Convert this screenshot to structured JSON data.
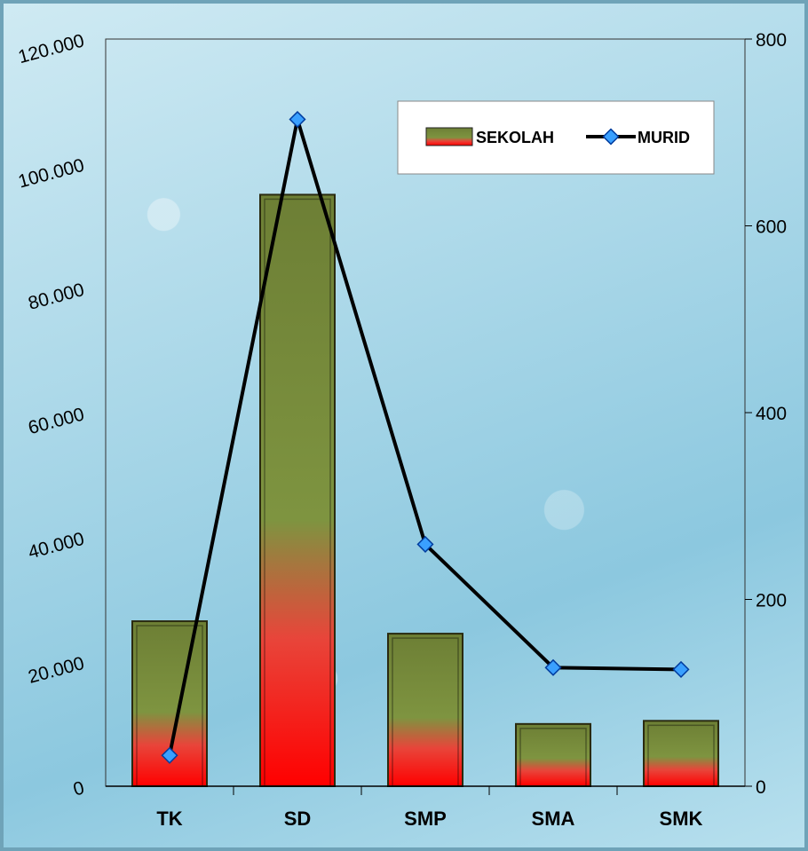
{
  "chart_data": {
    "type": "bar",
    "categories": [
      "TK",
      "SD",
      "SMP",
      "SMA",
      "SMK"
    ],
    "series": [
      {
        "name": "SEKOLAH",
        "kind": "bar",
        "axis": "left",
        "values": [
          26500,
          95000,
          24500,
          10000,
          10500
        ]
      },
      {
        "name": "MURID",
        "kind": "line",
        "axis": "right",
        "values": [
          33,
          714,
          259,
          127,
          125
        ]
      }
    ],
    "y_left": {
      "ticks": [
        "0",
        "20.000",
        "40.000",
        "60.000",
        "80.000",
        "100.000",
        "120.000"
      ],
      "min": 0,
      "max": 120000
    },
    "y_right": {
      "ticks": [
        "0",
        "200",
        "400",
        "600",
        "800"
      ],
      "min": 0,
      "max": 800
    },
    "legend": {
      "position": "top-right",
      "entries": [
        "SEKOLAH",
        "MURID"
      ]
    },
    "colors": {
      "bar_top": "#5e7a2a",
      "bar_bottom": "#ff0000",
      "line": "#000000",
      "marker": "#3aa0ff",
      "plot_bg": "#a9d7e8"
    }
  }
}
